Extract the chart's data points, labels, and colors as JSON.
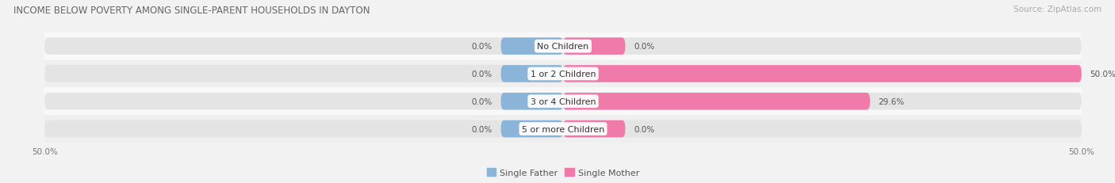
{
  "title": "INCOME BELOW POVERTY AMONG SINGLE-PARENT HOUSEHOLDS IN DAYTON",
  "source": "Source: ZipAtlas.com",
  "categories": [
    "No Children",
    "1 or 2 Children",
    "3 or 4 Children",
    "5 or more Children"
  ],
  "single_father": [
    0.0,
    0.0,
    0.0,
    0.0
  ],
  "single_mother": [
    0.0,
    50.0,
    29.6,
    0.0
  ],
  "father_color": "#8ab4d8",
  "mother_color": "#f07aaa",
  "bar_bg_color": "#e4e4e4",
  "bar_height": 0.62,
  "xlim": [
    -50,
    50
  ],
  "title_fontsize": 8.5,
  "source_fontsize": 7.5,
  "label_fontsize": 7.5,
  "category_fontsize": 8.0,
  "legend_fontsize": 8,
  "bg_color": "#f2f2f2",
  "row_bg_color": "#ffffff",
  "row_alt_color": "#ebebeb"
}
